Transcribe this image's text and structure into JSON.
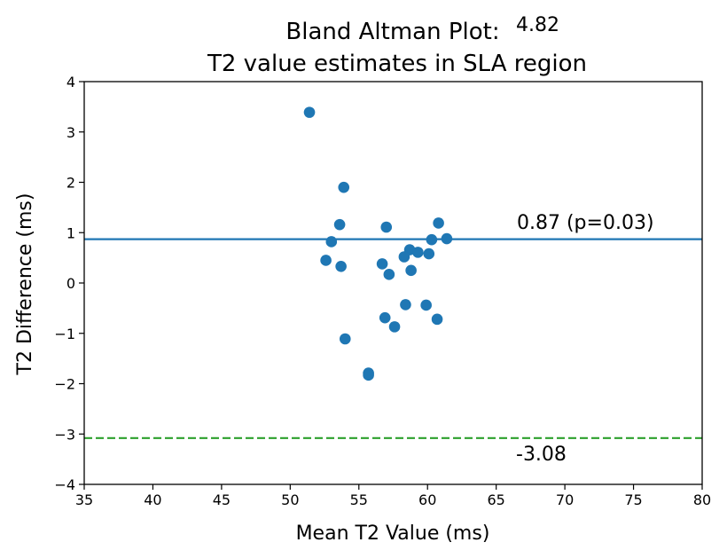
{
  "chart_data": {
    "type": "scatter",
    "title": "Bland Altman Plot:\nT2 value estimates in SLA region",
    "title_lines": [
      "Bland Altman Plot:",
      "T2 value estimates in SLA region"
    ],
    "xlabel": "Mean T2 Value (ms)",
    "ylabel": "T2 Difference (ms)",
    "xlim": [
      35,
      80
    ],
    "ylim": [
      -4,
      4
    ],
    "xticks": [
      35,
      40,
      45,
      50,
      55,
      60,
      65,
      70,
      75,
      80
    ],
    "yticks": [
      -4,
      -3,
      -2,
      -1,
      0,
      1,
      2,
      3,
      4
    ],
    "grid": false,
    "point_color": "#1f77b4",
    "points": [
      {
        "x": 51.4,
        "y": 3.39
      },
      {
        "x": 53.9,
        "y": 1.9
      },
      {
        "x": 53.6,
        "y": 1.16
      },
      {
        "x": 57.0,
        "y": 1.11
      },
      {
        "x": 60.8,
        "y": 1.19
      },
      {
        "x": 53.0,
        "y": 0.82
      },
      {
        "x": 60.3,
        "y": 0.86
      },
      {
        "x": 61.4,
        "y": 0.88
      },
      {
        "x": 58.7,
        "y": 0.66
      },
      {
        "x": 59.3,
        "y": 0.61
      },
      {
        "x": 60.1,
        "y": 0.58
      },
      {
        "x": 58.3,
        "y": 0.52
      },
      {
        "x": 52.6,
        "y": 0.45
      },
      {
        "x": 56.7,
        "y": 0.38
      },
      {
        "x": 53.7,
        "y": 0.33
      },
      {
        "x": 58.8,
        "y": 0.25
      },
      {
        "x": 57.2,
        "y": 0.17
      },
      {
        "x": 58.4,
        "y": -0.43
      },
      {
        "x": 59.9,
        "y": -0.44
      },
      {
        "x": 56.9,
        "y": -0.69
      },
      {
        "x": 60.7,
        "y": -0.72
      },
      {
        "x": 57.6,
        "y": -0.87
      },
      {
        "x": 54.0,
        "y": -1.11
      },
      {
        "x": 55.7,
        "y": -1.79
      },
      {
        "x": 55.7,
        "y": -1.83
      }
    ],
    "mean_line": {
      "y": 0.87,
      "color": "#1f77b4",
      "label": "0.87 (p=0.03)"
    },
    "upper_loa": {
      "y": 4.82,
      "color": "#2ca02c",
      "label": "4.82"
    },
    "lower_loa": {
      "y": -3.08,
      "color": "#2ca02c",
      "label": "-3.08"
    }
  }
}
